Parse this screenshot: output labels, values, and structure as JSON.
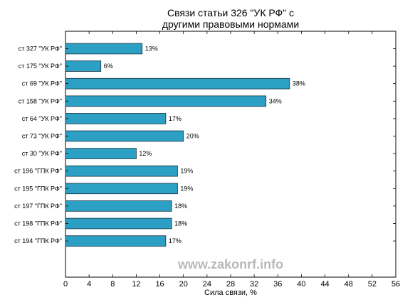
{
  "chart_data": {
    "type": "bar",
    "orientation": "horizontal",
    "title_lines": [
      "Связи статьи 326 \"УК РФ\" с",
      "другими правовыми нормами"
    ],
    "xlabel": "Сила связи, %",
    "ylabel": "",
    "xlim": [
      0,
      56
    ],
    "xticks": [
      "0",
      "4",
      "8",
      "12",
      "16",
      "20",
      "24",
      "28",
      "32",
      "36",
      "40",
      "44",
      "48",
      "52",
      "56"
    ],
    "categories": [
      "ст 327 \"УК РФ\"",
      "ст 175 \"УК РФ\"",
      "ст 69 \"УК РФ\"",
      "ст 158 \"УК РФ\"",
      "ст 64 \"УК РФ\"",
      "ст 73 \"УК РФ\"",
      "ст 30 \"УК РФ\"",
      "ст 196 \"ГПК РФ\"",
      "ст 195 \"ГПК РФ\"",
      "ст 197 \"ГПК РФ\"",
      "ст 198 \"ГПК РФ\"",
      "ст 194 \"ГПК РФ\""
    ],
    "values": [
      13,
      6,
      38,
      34,
      17,
      20,
      12,
      19,
      19,
      18,
      18,
      17
    ],
    "value_labels": [
      "13%",
      "6%",
      "38%",
      "34%",
      "17%",
      "20%",
      "12%",
      "19%",
      "19%",
      "18%",
      "18%",
      "17%"
    ],
    "bar_color": "#2b9fc4",
    "bar_edge_color": "#1a3340",
    "grid": false,
    "legend": "none"
  },
  "watermark": "www.zakonrf.info"
}
